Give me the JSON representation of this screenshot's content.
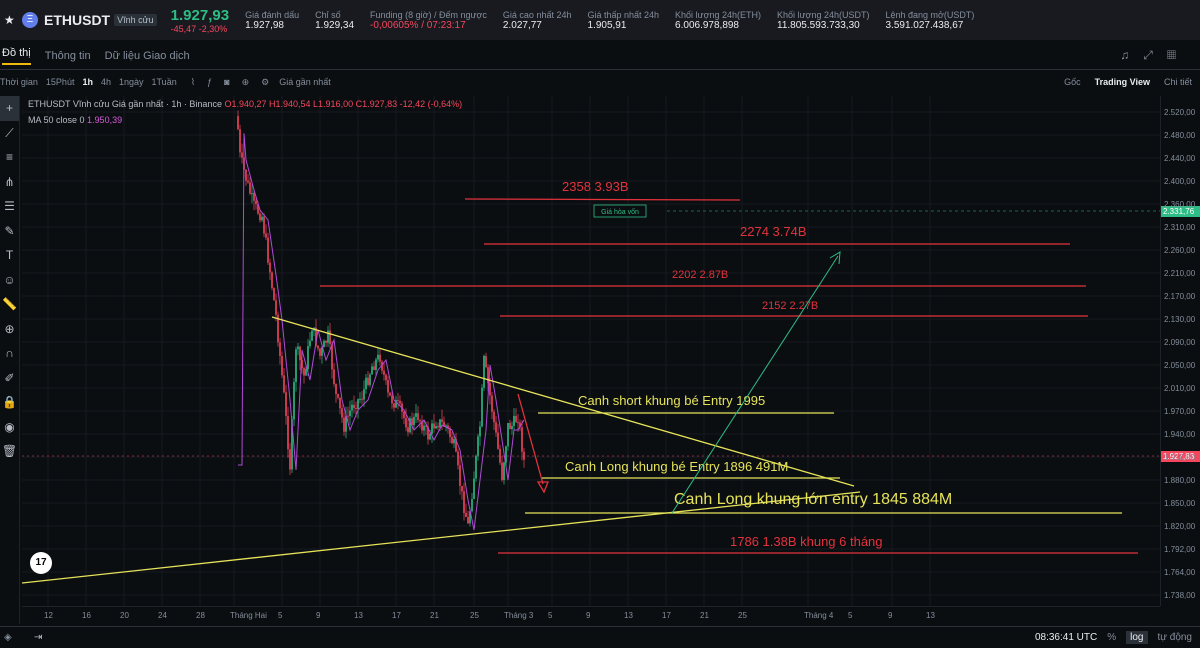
{
  "header": {
    "symbol": "ETHUSDT",
    "contract": "Vĩnh cửu",
    "price": "1.927,93",
    "change": "-45,47 -2,30%",
    "stats": [
      {
        "k": "Giá đánh dấu",
        "v": "1.927,98"
      },
      {
        "k": "Chỉ số",
        "v": "1.929,34"
      },
      {
        "k": "Funding (8 giờ) / Đếm ngược",
        "v": "-0,00605% / 07:23:17"
      },
      {
        "k": "Giá cao nhất 24h",
        "v": "2.027,77"
      },
      {
        "k": "Giá thấp nhất 24h",
        "v": "1.905,91"
      },
      {
        "k": "Khối lượng 24h(ETH)",
        "v": "6.006.978,898"
      },
      {
        "k": "Khối lượng 24h(USDT)",
        "v": "11.805.593.733,30"
      },
      {
        "k": "Lệnh đang mở(USDT)",
        "v": "3.591.027.438,67"
      }
    ]
  },
  "tabs": [
    "Đồ thị",
    "Thông tin",
    "Dữ liệu Giao dịch"
  ],
  "toolbar": {
    "intervals": [
      "Thời gian",
      "15Phút",
      "1h",
      "4h",
      "1ngày",
      "1Tuần"
    ],
    "active_interval": "1h",
    "price_type": "Giá gần nhất",
    "views": [
      "Gốc",
      "Trading View",
      "Chi tiết"
    ]
  },
  "legend": {
    "title": "ETHUSDT Vĩnh cửu Giá gần nhất · 1h · Binance",
    "ohlc": "O1.940,27 H1.940,54 L1.916,00 C1.927,83 -12,42 (-0,64%)",
    "ma_label": "MA 50 close 0",
    "ma_value": "1.950,39"
  },
  "y_axis": [
    "2.520,00",
    "2.480,00",
    "2.440,00",
    "2.400,00",
    "2.360,00",
    "2.310,00",
    "2.260,00",
    "2.210,00",
    "2.170,00",
    "2.130,00",
    "2.090,00",
    "2.050,00",
    "2.010,00",
    "1.970,00",
    "1.940,00",
    "1.910,00",
    "1.880,00",
    "1.850,00",
    "1.820,00",
    "1.792,00",
    "1.764,00",
    "1.738,00"
  ],
  "y_tags": {
    "breakeven": "2.331,76",
    "last": "1.927,83"
  },
  "breakeven_label": "Giá hòa vốn",
  "x_axis": [
    "12",
    "16",
    "20",
    "24",
    "28",
    "Tháng Hai",
    "5",
    "9",
    "13",
    "17",
    "21",
    "25",
    "Tháng 3",
    "5",
    "9",
    "13",
    "17",
    "21",
    "25",
    "Tháng 4",
    "5",
    "9",
    "13"
  ],
  "annotations": {
    "l2358": "2358  3.93B",
    "l2274": "2274 3.74B",
    "l2202": "2202 2.87B",
    "l2152": "2152 2.27B",
    "short": "Canh short khung bé Entry 1995",
    "long_small": "Canh Long khung bé Entry 1896 491M",
    "long_big": "Canh Long khung lớn entry 1845 884M",
    "l1786": "1786 1.38B khung 6 tháng"
  },
  "colors": {
    "up": "#2ebd85",
    "down": "#f6465d",
    "accent": "#f0b90b",
    "ma": "#b04ad8",
    "trend": "#e6e35a",
    "level": "#e2323c"
  },
  "bottom": {
    "time": "08:36:41 UTC",
    "pct": "%",
    "log": "log",
    "auto": "tự động"
  }
}
